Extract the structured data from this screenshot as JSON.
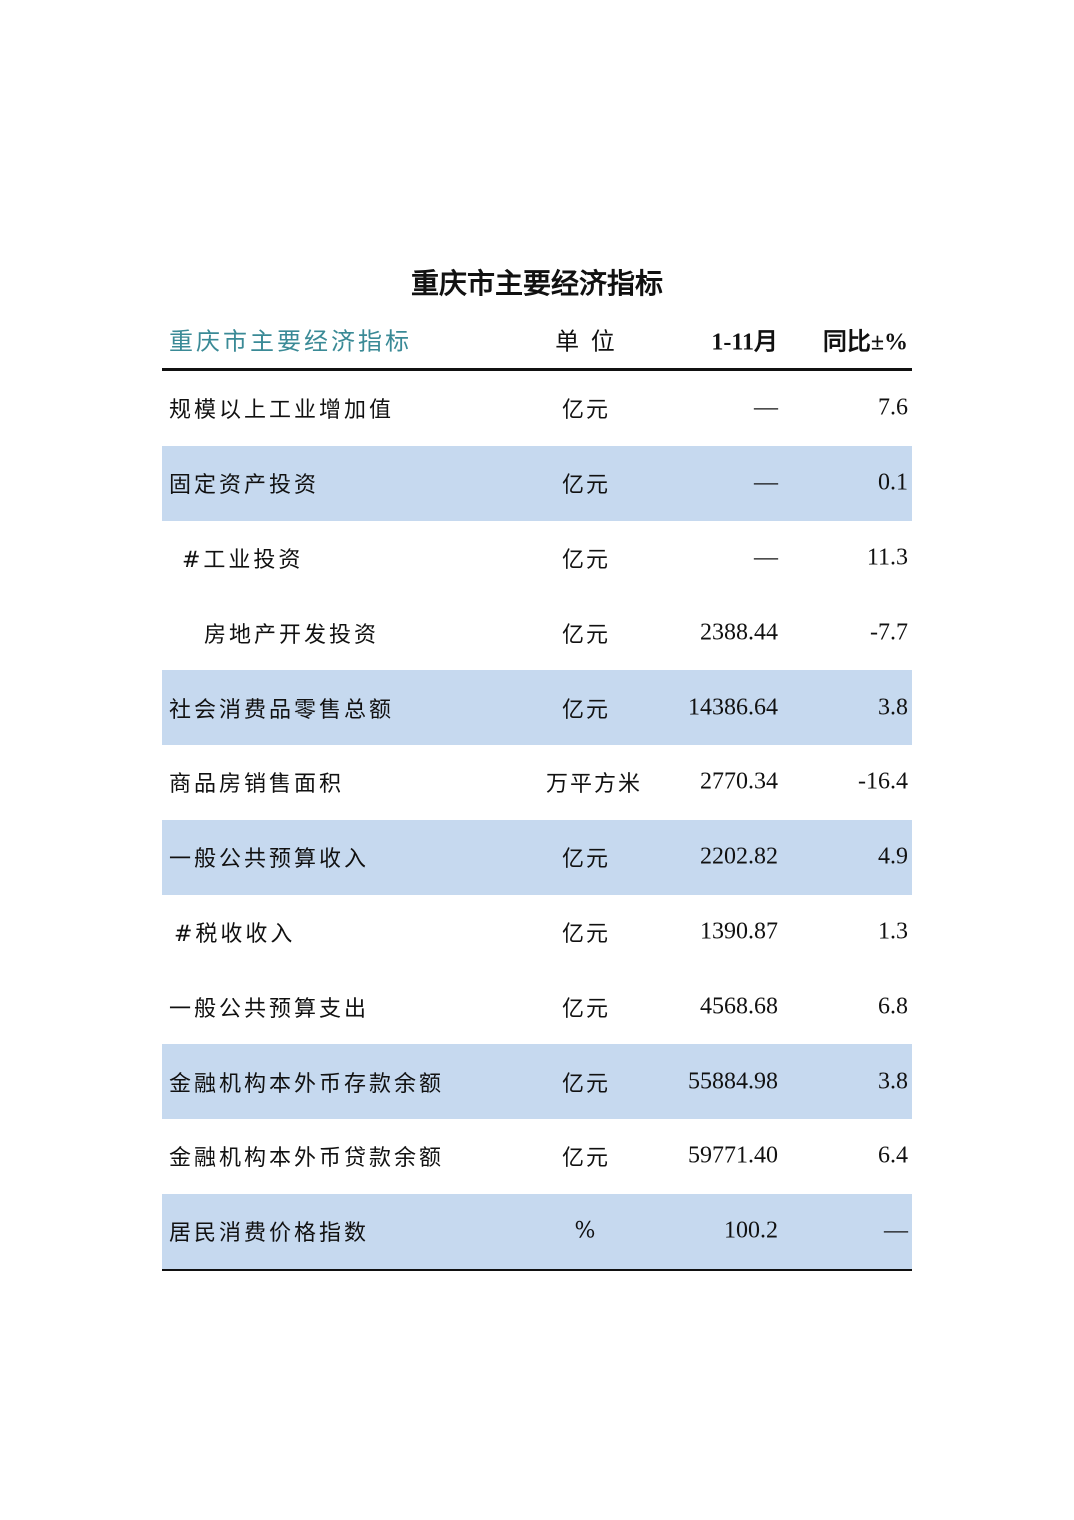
{
  "title": "重庆市主要经济指标",
  "header": {
    "indicator": "重庆市主要经济指标",
    "unit": "单 位",
    "period": "1-11月",
    "yoy": "同比±%"
  },
  "colors": {
    "header_text": "#3a8a96",
    "band": "#c6d9ef"
  },
  "rows": [
    {
      "name": "规模以上工业增加值",
      "unit": "亿元",
      "value": "—",
      "yoy": "7.6",
      "band": false,
      "indent": 0
    },
    {
      "name": "固定资产投资",
      "unit": "亿元",
      "value": "—",
      "yoy": "0.1",
      "band": true,
      "indent": 0
    },
    {
      "name": "#工业投资",
      "unit": "亿元",
      "value": "—",
      "yoy": "11.3",
      "band": false,
      "indent": 1
    },
    {
      "name": "房地产开发投资",
      "unit": "亿元",
      "value": "2388.44",
      "yoy": "-7.7",
      "band": false,
      "indent": 2
    },
    {
      "name": "社会消费品零售总额",
      "unit": "亿元",
      "value": "14386.64",
      "yoy": "3.8",
      "band": true,
      "indent": 0
    },
    {
      "name": "商品房销售面积",
      "unit": "万平方米",
      "value": "2770.34",
      "yoy": "-16.4",
      "band": false,
      "indent": 0
    },
    {
      "name": "一般公共预算收入",
      "unit": "亿元",
      "value": "2202.82",
      "yoy": "4.9",
      "band": true,
      "indent": 0
    },
    {
      "name": "#税收收入",
      "unit": "亿元",
      "value": "1390.87",
      "yoy": "1.3",
      "band": false,
      "indent": 1
    },
    {
      "name": "一般公共预算支出",
      "unit": "亿元",
      "value": "4568.68",
      "yoy": "6.8",
      "band": false,
      "indent": 0
    },
    {
      "name": "金融机构本外币存款余额",
      "unit": "亿元",
      "value": "55884.98",
      "yoy": "3.8",
      "band": true,
      "indent": 0
    },
    {
      "name": "金融机构本外币贷款余额",
      "unit": "亿元",
      "value": "59771.40",
      "yoy": "6.4",
      "band": false,
      "indent": 0
    },
    {
      "name": "居民消费价格指数",
      "unit": "%",
      "value": "100.2",
      "yoy": "—",
      "band": true,
      "indent": 0
    }
  ]
}
